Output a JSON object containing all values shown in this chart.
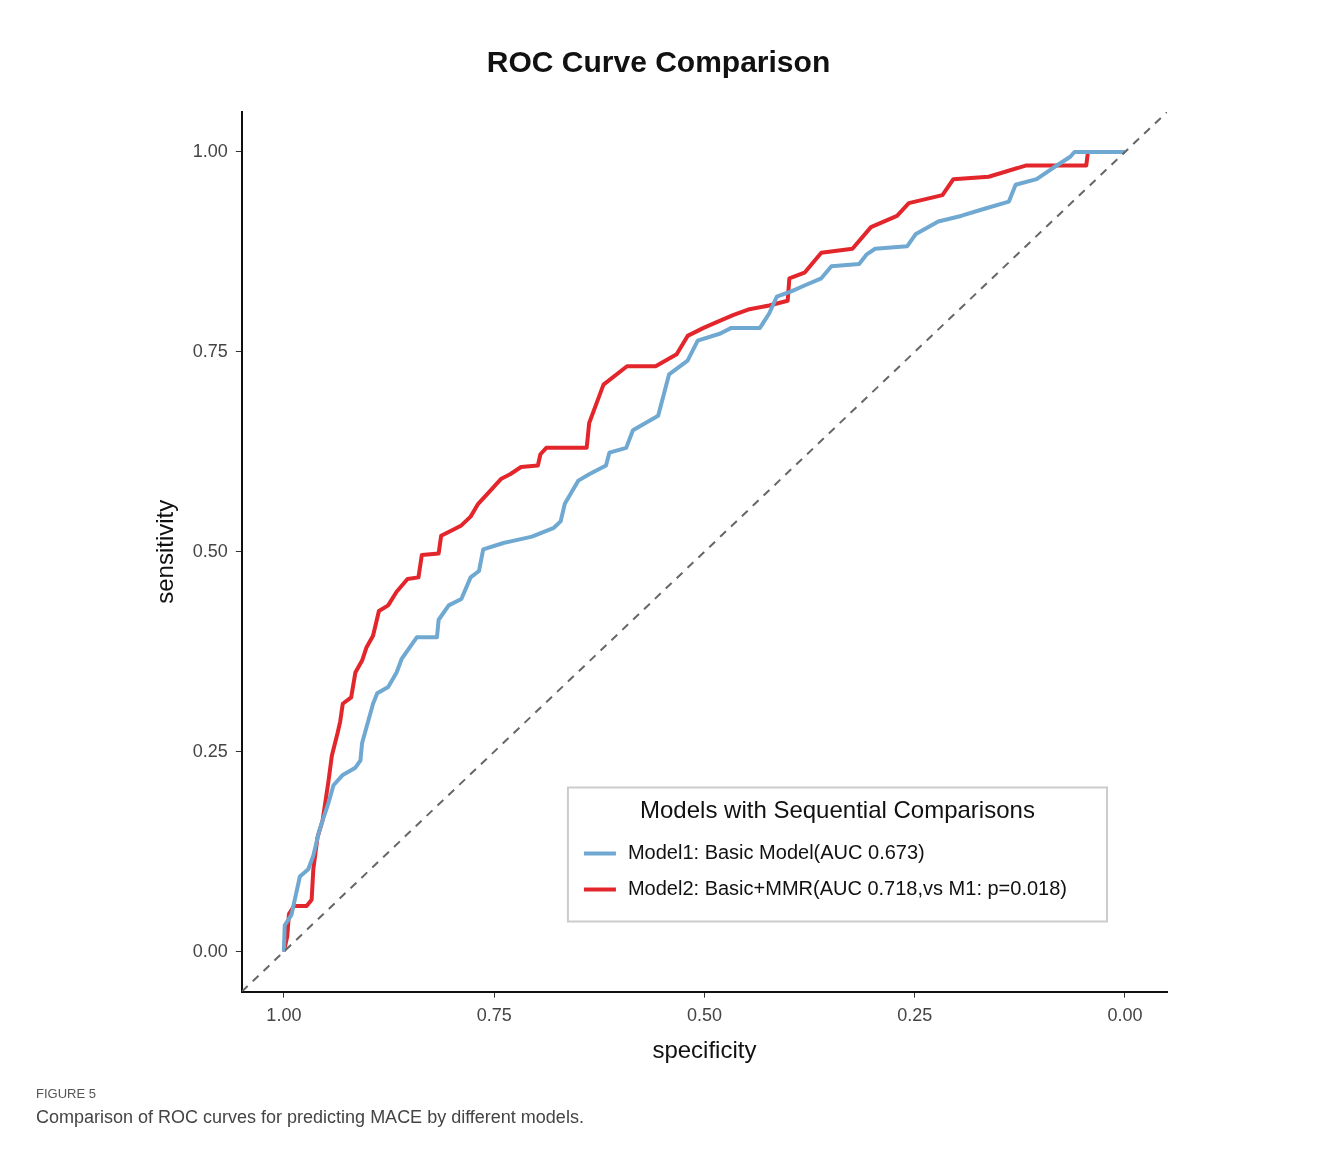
{
  "chart_data": {
    "type": "line",
    "title": "ROC Curve Comparison",
    "xlabel": "specificity",
    "ylabel": "sensitivity",
    "legend_title": "Models with Sequential Comparisons",
    "legend": "bottom right",
    "grid": false,
    "marker": "none",
    "xlim": [
      1.05,
      -0.05
    ],
    "ylim": [
      -0.05,
      1.05
    ],
    "xticks": [
      {
        "value": 1,
        "label": "1.00"
      },
      {
        "value": 0.75,
        "label": "0.75"
      },
      {
        "value": 0.5,
        "label": "0.50"
      },
      {
        "value": 0.25,
        "label": "0.25"
      },
      {
        "value": 0,
        "label": "0.00"
      }
    ],
    "yticks": [
      {
        "value": 0,
        "label": "0.00"
      },
      {
        "value": 0.25,
        "label": "0.25"
      },
      {
        "value": 0.5,
        "label": "0.50"
      },
      {
        "value": 0.75,
        "label": "0.75"
      },
      {
        "value": 1,
        "label": "1.00"
      }
    ],
    "series": [
      {
        "color": "#666666",
        "line_style": "dashed",
        "x": [
          1.05,
          -0.05
        ],
        "values": [
          -0.05,
          1.05
        ]
      },
      {
        "name": "Model1: Basic Model(AUC 0.673)",
        "color": "#6fa8d0",
        "x": [
          1,
          0.999,
          0.991,
          0.981,
          0.971,
          0.965,
          0.958,
          0.947,
          0.941,
          0.93,
          0.915,
          0.909,
          0.907,
          0.894,
          0.889,
          0.876,
          0.866,
          0.86,
          0.842,
          0.818,
          0.816,
          0.804,
          0.789,
          0.778,
          0.768,
          0.763,
          0.739,
          0.705,
          0.679,
          0.671,
          0.666,
          0.65,
          0.637,
          0.617,
          0.613,
          0.593,
          0.585,
          0.555,
          0.542,
          0.52,
          0.508,
          0.481,
          0.468,
          0.434,
          0.423,
          0.414,
          0.396,
          0.381,
          0.361,
          0.349,
          0.316,
          0.307,
          0.297,
          0.259,
          0.249,
          0.222,
          0.195,
          0.167,
          0.138,
          0.13,
          0.105,
          0.087,
          0.065,
          0.06,
          0
        ],
        "values": [
          0,
          0.033,
          0.046,
          0.094,
          0.103,
          0.12,
          0.151,
          0.186,
          0.208,
          0.221,
          0.23,
          0.239,
          0.261,
          0.31,
          0.323,
          0.331,
          0.349,
          0.366,
          0.393,
          0.393,
          0.415,
          0.433,
          0.441,
          0.468,
          0.476,
          0.503,
          0.511,
          0.519,
          0.53,
          0.538,
          0.56,
          0.589,
          0.597,
          0.608,
          0.624,
          0.63,
          0.652,
          0.67,
          0.722,
          0.739,
          0.764,
          0.773,
          0.78,
          0.78,
          0.798,
          0.819,
          0.826,
          0.833,
          0.842,
          0.857,
          0.86,
          0.872,
          0.879,
          0.882,
          0.897,
          0.913,
          0.92,
          0.929,
          0.938,
          0.959,
          0.966,
          0.979,
          0.994,
          1,
          1
        ]
      },
      {
        "name": "Model2: Basic+MMR(AUC 0.718,vs M1: p=0.018)",
        "color": "#e3262b",
        "x": [
          1,
          0.996,
          0.994,
          0.988,
          0.973,
          0.967,
          0.965,
          0.96,
          0.954,
          0.947,
          0.943,
          0.936,
          0.933,
          0.93,
          0.92,
          0.915,
          0.907,
          0.902,
          0.894,
          0.887,
          0.876,
          0.866,
          0.853,
          0.84,
          0.836,
          0.816,
          0.813,
          0.8,
          0.789,
          0.778,
          0.769,
          0.755,
          0.742,
          0.731,
          0.718,
          0.698,
          0.695,
          0.688,
          0.64,
          0.637,
          0.62,
          0.592,
          0.558,
          0.533,
          0.52,
          0.501,
          0.486,
          0.466,
          0.448,
          0.423,
          0.401,
          0.399,
          0.381,
          0.361,
          0.324,
          0.302,
          0.271,
          0.257,
          0.217,
          0.204,
          0.162,
          0.118,
          0.046,
          0.044,
          0
        ],
        "values": [
          0,
          0.019,
          0.047,
          0.057,
          0.057,
          0.065,
          0.103,
          0.143,
          0.164,
          0.213,
          0.245,
          0.274,
          0.288,
          0.31,
          0.318,
          0.349,
          0.364,
          0.38,
          0.395,
          0.426,
          0.433,
          0.45,
          0.466,
          0.468,
          0.496,
          0.498,
          0.52,
          0.527,
          0.533,
          0.544,
          0.56,
          0.576,
          0.591,
          0.597,
          0.606,
          0.608,
          0.622,
          0.63,
          0.63,
          0.661,
          0.709,
          0.732,
          0.732,
          0.747,
          0.77,
          0.78,
          0.787,
          0.796,
          0.803,
          0.808,
          0.814,
          0.842,
          0.849,
          0.874,
          0.879,
          0.906,
          0.92,
          0.936,
          0.946,
          0.966,
          0.969,
          0.983,
          0.983,
          1,
          1
        ]
      }
    ],
    "annotations": [
      "FIGURE 5",
      "Comparison of ROC curves for predicting MACE by different models."
    ]
  }
}
